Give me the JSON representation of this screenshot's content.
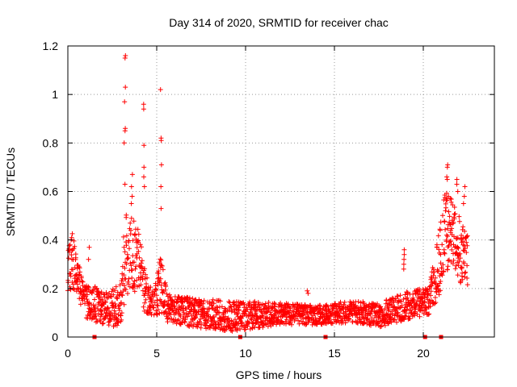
{
  "chart_data": {
    "type": "scatter",
    "title": "Day 314 of 2020, SRMTID for receiver chac",
    "xlabel": "GPS time / hours",
    "ylabel": "SRMTID / TECUs",
    "xlim": [
      0,
      24
    ],
    "ylim": [
      0,
      1.2
    ],
    "xticks": [
      0,
      5,
      10,
      15,
      20
    ],
    "yticks": [
      0,
      0.2,
      0.4,
      0.6,
      0.8,
      1.0,
      1.2
    ],
    "xtick_labels": [
      "0",
      "5",
      "10",
      "15",
      "20"
    ],
    "ytick_labels": [
      "0",
      "0.2",
      "0.4",
      "0.6",
      "0.8",
      "1",
      "1.2"
    ],
    "grid": true,
    "marker": "+",
    "series": [
      {
        "name": "SRMTID",
        "color": "#ff0000",
        "envelope": [
          {
            "x": 0.0,
            "lo": 0.17,
            "hi": 0.35
          },
          {
            "x": 0.2,
            "lo": 0.2,
            "hi": 0.47
          },
          {
            "x": 0.5,
            "lo": 0.18,
            "hi": 0.33
          },
          {
            "x": 0.8,
            "lo": 0.12,
            "hi": 0.25
          },
          {
            "x": 1.0,
            "lo": 0.08,
            "hi": 0.22
          },
          {
            "x": 1.3,
            "lo": 0.07,
            "hi": 0.2
          },
          {
            "x": 1.6,
            "lo": 0.06,
            "hi": 0.21
          },
          {
            "x": 2.0,
            "lo": 0.05,
            "hi": 0.18
          },
          {
            "x": 2.5,
            "lo": 0.04,
            "hi": 0.2
          },
          {
            "x": 3.0,
            "lo": 0.05,
            "hi": 0.22
          },
          {
            "x": 3.2,
            "lo": 0.15,
            "hi": 0.55
          },
          {
            "x": 3.5,
            "lo": 0.2,
            "hi": 0.5
          },
          {
            "x": 4.0,
            "lo": 0.17,
            "hi": 0.45
          },
          {
            "x": 4.3,
            "lo": 0.1,
            "hi": 0.3
          },
          {
            "x": 4.8,
            "lo": 0.08,
            "hi": 0.18
          },
          {
            "x": 5.2,
            "lo": 0.1,
            "hi": 0.35
          },
          {
            "x": 5.6,
            "lo": 0.06,
            "hi": 0.18
          },
          {
            "x": 7.0,
            "lo": 0.04,
            "hi": 0.16
          },
          {
            "x": 9.0,
            "lo": 0.02,
            "hi": 0.15
          },
          {
            "x": 10.0,
            "lo": 0.03,
            "hi": 0.15
          },
          {
            "x": 12.0,
            "lo": 0.05,
            "hi": 0.14
          },
          {
            "x": 14.0,
            "lo": 0.05,
            "hi": 0.13
          },
          {
            "x": 16.0,
            "lo": 0.06,
            "hi": 0.15
          },
          {
            "x": 17.5,
            "lo": 0.04,
            "hi": 0.14
          },
          {
            "x": 18.5,
            "lo": 0.06,
            "hi": 0.17
          },
          {
            "x": 19.5,
            "lo": 0.08,
            "hi": 0.2
          },
          {
            "x": 20.3,
            "lo": 0.09,
            "hi": 0.2
          },
          {
            "x": 20.8,
            "lo": 0.15,
            "hi": 0.4
          },
          {
            "x": 21.2,
            "lo": 0.25,
            "hi": 0.6
          },
          {
            "x": 21.6,
            "lo": 0.3,
            "hi": 0.58
          },
          {
            "x": 22.0,
            "lo": 0.22,
            "hi": 0.5
          },
          {
            "x": 22.5,
            "lo": 0.2,
            "hi": 0.45
          }
        ],
        "spikes": [
          {
            "x": 3.2,
            "values": [
              1.16,
              1.15,
              1.03,
              0.97,
              0.86,
              0.85,
              0.8,
              0.63
            ]
          },
          {
            "x": 4.3,
            "values": [
              0.96,
              0.94,
              0.79,
              0.7,
              0.66,
              0.62
            ]
          },
          {
            "x": 5.25,
            "values": [
              1.02,
              0.82,
              0.81,
              0.71,
              0.62,
              0.53
            ]
          },
          {
            "x": 3.6,
            "values": [
              0.67,
              0.62,
              0.58,
              0.55
            ]
          },
          {
            "x": 18.9,
            "values": [
              0.36,
              0.34,
              0.32,
              0.3,
              0.28
            ]
          },
          {
            "x": 21.35,
            "values": [
              0.71,
              0.7,
              0.66,
              0.65
            ]
          },
          {
            "x": 21.9,
            "values": [
              0.65,
              0.63,
              0.6
            ]
          },
          {
            "x": 22.3,
            "values": [
              0.62,
              0.58,
              0.55
            ]
          },
          {
            "x": 1.2,
            "values": [
              0.37,
              0.32
            ]
          },
          {
            "x": 13.5,
            "values": [
              0.19,
              0.18
            ]
          }
        ],
        "zeros": [
          1.5,
          9.7,
          14.5,
          20.1,
          21.0
        ]
      }
    ]
  }
}
